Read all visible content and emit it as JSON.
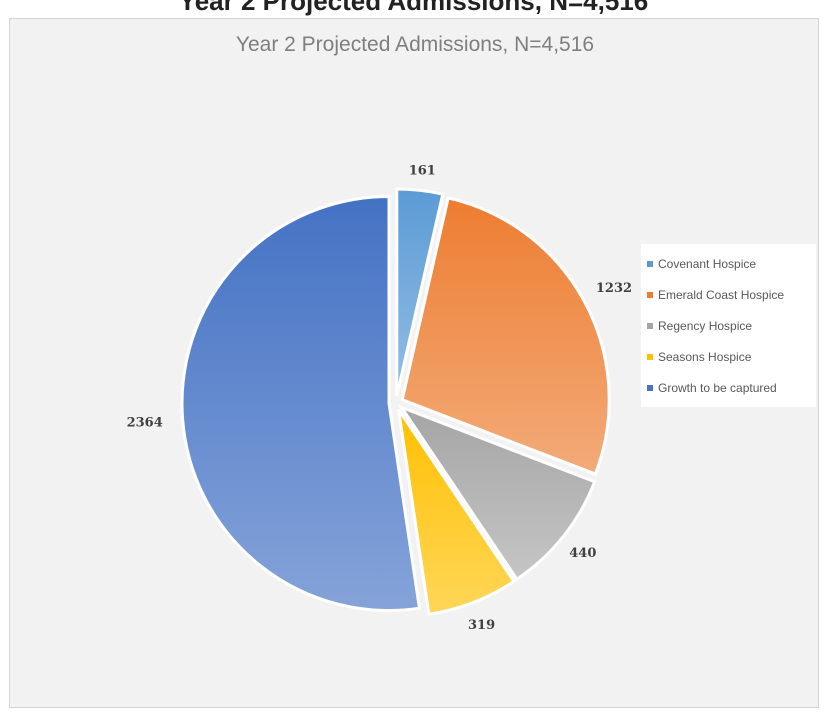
{
  "page": {
    "heading": "Year 2 Projected Admissions, N=4,516"
  },
  "chart_data": {
    "type": "pie",
    "title": "Year 2 Projected Admissions, N=4,516",
    "categories": [
      "Covenant Hospice",
      "Emerald Coast Hospice",
      "Regency Hospice",
      "Seasons Hospice",
      "Growth to be captured"
    ],
    "values": [
      161,
      1232,
      440,
      319,
      2364
    ],
    "data_labels": [
      "161",
      "1232",
      "440",
      "319",
      "2364"
    ],
    "colors": [
      "#5b9bd5",
      "#ed7d31",
      "#a5a5a5",
      "#ffc000",
      "#4472c4"
    ],
    "exploded": true,
    "legend_position": "right"
  }
}
